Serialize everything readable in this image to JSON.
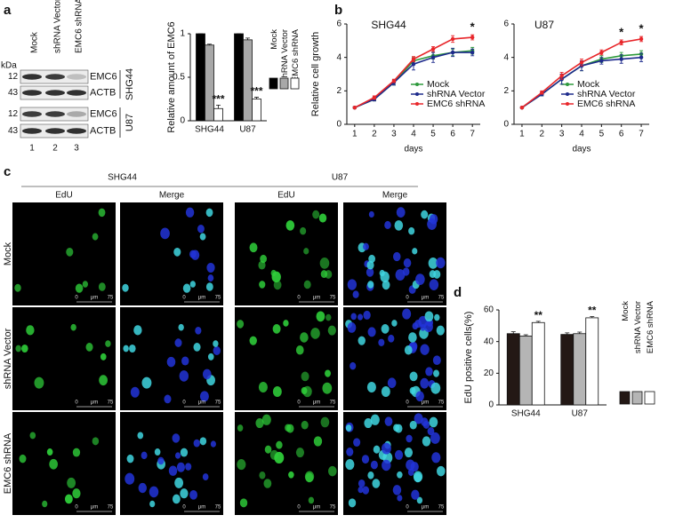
{
  "panel_labels": [
    "a",
    "b",
    "c",
    "d"
  ],
  "blot": {
    "unit": "kDa",
    "lanes": [
      "Mock",
      "shRNA Vector",
      "EMC6 shRNA"
    ],
    "lane_numbers": [
      1,
      2,
      3
    ],
    "cell_lines": [
      "SHG44",
      "U87"
    ],
    "rows": [
      {
        "marker": 12,
        "protein": "EMC6"
      },
      {
        "marker": 43,
        "protein": "ACTB"
      },
      {
        "marker": 12,
        "protein": "EMC6"
      },
      {
        "marker": 43,
        "protein": "ACTB"
      }
    ]
  },
  "microscopy": {
    "cell_lines": [
      "SHG44",
      "U87"
    ],
    "channels": [
      "EdU",
      "Merge",
      "EdU",
      "Merge"
    ],
    "conditions": [
      "Mock",
      "shRNA Vector",
      "EMC6 shRNA"
    ],
    "scale_bar": {
      "start": 0,
      "unit": "μm",
      "end": 75
    }
  },
  "chart_data": [
    {
      "type": "bar",
      "ylabel": "Relative amount of EMC6",
      "categories": [
        "SHG44",
        "U87"
      ],
      "series": [
        {
          "name": "Mock",
          "color": "#000000",
          "values": [
            1,
            1
          ],
          "errors": [
            0,
            0
          ]
        },
        {
          "name": "shRNA Vector",
          "color": "#a8a8a8",
          "values": [
            0.87,
            0.93
          ],
          "errors": [
            0.01,
            0.02
          ]
        },
        {
          "name": "EMC6 shRNA",
          "color": "#ffffff",
          "values": [
            0.14,
            0.25
          ],
          "errors": [
            0.04,
            0.02
          ],
          "annotations": [
            "***",
            "***"
          ]
        }
      ],
      "ylim": [
        0,
        1
      ],
      "yticks": [
        0,
        0.5,
        1
      ]
    },
    {
      "type": "line",
      "title": "SHG44",
      "ylabel": "Relative cell growth",
      "xlabel": "days",
      "x": [
        1,
        2,
        3,
        4,
        5,
        6,
        7
      ],
      "xlim": [
        0.6,
        7.4
      ],
      "xticks": [
        1,
        2,
        3,
        4,
        5,
        6,
        7
      ],
      "ylim": [
        0,
        6
      ],
      "yticks": [
        0,
        2,
        4,
        6
      ],
      "legend": "right",
      "annotations": [
        null,
        null,
        null,
        null,
        null,
        null,
        "*"
      ],
      "series": [
        {
          "name": "Mock",
          "color": "#2e9a3c",
          "values": [
            1,
            1.5,
            2.5,
            3.8,
            4.1,
            4.3,
            4.4
          ],
          "errors": [
            0.05,
            0.1,
            0.15,
            0.2,
            0.2,
            0.2,
            0.2
          ]
        },
        {
          "name": "shRNA Vector",
          "color": "#1d2a8c",
          "values": [
            1,
            1.5,
            2.5,
            3.6,
            4.0,
            4.3,
            4.3
          ],
          "errors": [
            0.05,
            0.1,
            0.15,
            0.35,
            0.3,
            0.25,
            0.2
          ]
        },
        {
          "name": "EMC6 shRNA",
          "color": "#e8262a",
          "values": [
            1,
            1.6,
            2.6,
            3.9,
            4.5,
            5.1,
            5.2
          ],
          "errors": [
            0.05,
            0.1,
            0.1,
            0.15,
            0.15,
            0.2,
            0.15
          ]
        }
      ]
    },
    {
      "type": "line",
      "title": "U87",
      "xlabel": "days",
      "x": [
        1,
        2,
        3,
        4,
        5,
        6,
        7
      ],
      "xlim": [
        0.6,
        7.4
      ],
      "xticks": [
        1,
        2,
        3,
        4,
        5,
        6,
        7
      ],
      "ylim": [
        0,
        6
      ],
      "yticks": [
        0,
        2,
        4,
        6
      ],
      "legend": "right",
      "annotations": [
        null,
        null,
        null,
        null,
        null,
        "*",
        "*"
      ],
      "series": [
        {
          "name": "Mock",
          "color": "#2e9a3c",
          "values": [
            1,
            1.8,
            2.7,
            3.5,
            3.9,
            4.1,
            4.2
          ],
          "errors": [
            0.05,
            0.1,
            0.3,
            0.3,
            0.2,
            0.2,
            0.2
          ]
        },
        {
          "name": "shRNA Vector",
          "color": "#1d2a8c",
          "values": [
            1,
            1.8,
            2.7,
            3.5,
            3.8,
            3.9,
            4.0
          ],
          "errors": [
            0.05,
            0.1,
            0.3,
            0.3,
            0.2,
            0.25,
            0.25
          ]
        },
        {
          "name": "EMC6 shRNA",
          "color": "#e8262a",
          "values": [
            1,
            1.9,
            2.9,
            3.7,
            4.3,
            4.9,
            5.1
          ],
          "errors": [
            0.05,
            0.1,
            0.2,
            0.2,
            0.15,
            0.15,
            0.15
          ]
        }
      ]
    },
    {
      "type": "bar",
      "ylabel": "EdU positive cells(%)",
      "categories": [
        "SHG44",
        "U87"
      ],
      "series": [
        {
          "name": "Mock",
          "color": "#231815",
          "values": [
            45,
            44.5
          ],
          "errors": [
            1.2,
            1.0
          ]
        },
        {
          "name": "shRNA Vector",
          "color": "#b5b5b5",
          "values": [
            43.5,
            45
          ],
          "errors": [
            0.8,
            1.0
          ]
        },
        {
          "name": "EMC6 shRNA",
          "color": "#ffffff",
          "values": [
            52,
            55
          ],
          "errors": [
            0.8,
            0.8
          ],
          "annotations": [
            "**",
            "**"
          ]
        }
      ],
      "ylim": [
        0,
        60
      ],
      "yticks": [
        0,
        20,
        40,
        60
      ]
    }
  ]
}
